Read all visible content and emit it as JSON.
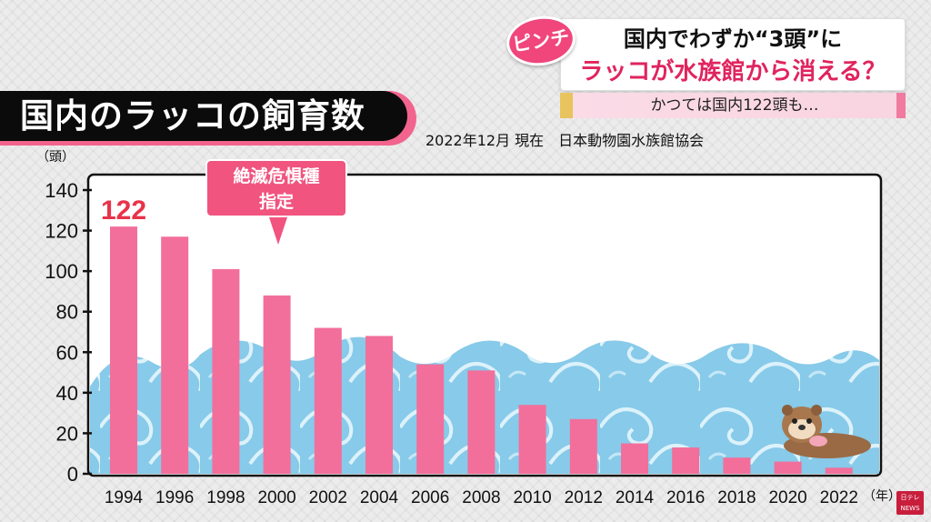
{
  "title": "国内のラッコの飼育数",
  "source": "2022年12月 現在　日本動物園水族館協会",
  "badge": "ピンチ",
  "headline": {
    "line1": "国内でわずか“3頭”に",
    "line2": "ラッコが水族館から消える？"
  },
  "subheadline": "かつては国内122頭も…",
  "callout": {
    "line1": "絶滅危惧種",
    "line2": "指定"
  },
  "logo": {
    "line1": "日テレ",
    "line2": "NEWS"
  },
  "colors": {
    "bar": "#f26f9b",
    "highlight": "#e8334a",
    "accent": "#f0547f"
  },
  "chart_data": {
    "type": "bar",
    "categories": [
      "1994",
      "1996",
      "1998",
      "2000",
      "2002",
      "2004",
      "2006",
      "2008",
      "2010",
      "2012",
      "2014",
      "2016",
      "2018",
      "2020",
      "2022"
    ],
    "values": [
      122,
      117,
      101,
      88,
      72,
      68,
      54,
      51,
      34,
      27,
      15,
      13,
      8,
      6,
      3
    ],
    "yticks": [
      0,
      20,
      40,
      60,
      80,
      100,
      120,
      140
    ],
    "ylim": [
      0,
      140
    ],
    "ylabel": "（頭）",
    "xlabel": "（年）",
    "data_labels": [
      {
        "index": 0,
        "text": "122"
      }
    ],
    "grid": false
  }
}
